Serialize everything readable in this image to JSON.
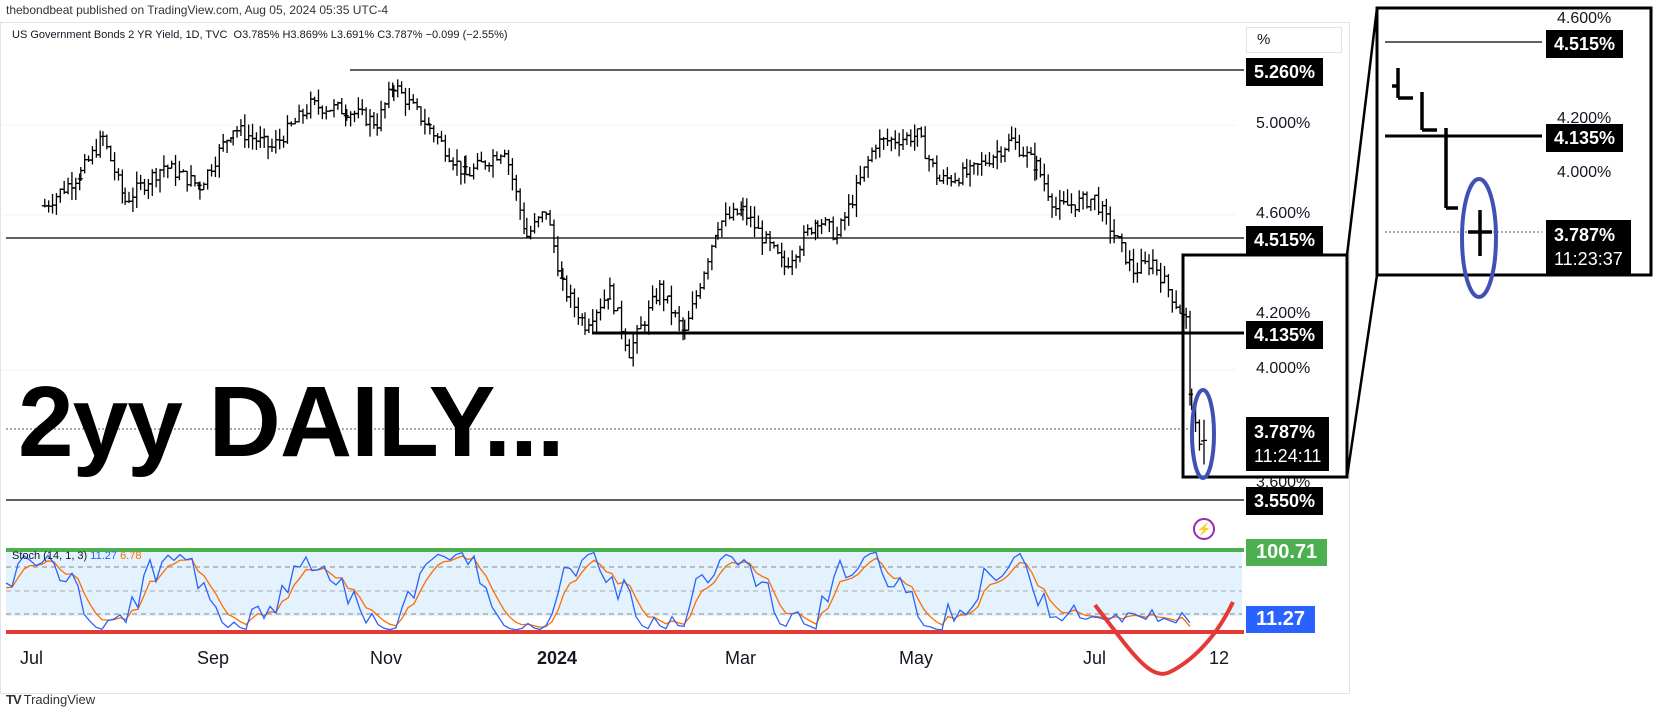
{
  "publisher": "thebondbeat published on TradingView.com, Aug 05, 2024 05:35 UTC-4",
  "symbol": {
    "name": "US Government Bonds 2 YR Yield, 1D, TVC",
    "ohlc": "O3.785% H3.869% L3.691% C3.787% −0.099 (−2.55%)"
  },
  "unit": "%",
  "annotation": "2yy DAILY...",
  "price_axis_ticks": [
    "5.000%",
    "4.600%",
    "4.200%",
    "4.000%",
    "3.600%"
  ],
  "level_tags": [
    "5.260%",
    "4.515%",
    "4.135%",
    "3.550%"
  ],
  "last_price": {
    "price": "3.787%",
    "countdown": "11:24:11"
  },
  "inset": {
    "ticks": [
      "4.600%",
      "4.200%",
      "4.000%"
    ],
    "tags": [
      "4.515%",
      "4.135%"
    ],
    "last_price": {
      "price": "3.787%",
      "countdown": "11:23:37"
    }
  },
  "stoch": {
    "label": "Stoch (14, 1, 3)",
    "k_value": "11.27",
    "d_value": "6.78",
    "upper_tag": "100.71",
    "current_tag": "11.27"
  },
  "x_axis": [
    "Jul",
    "Sep",
    "Nov",
    "2024",
    "Mar",
    "May",
    "Jul",
    "12"
  ],
  "branding": "TradingView",
  "colors": {
    "candle": "#000000",
    "stoch_k": "#2962ff",
    "stoch_d": "#ff6d00",
    "upper_line": "#4caf50",
    "lower_line": "#e53935",
    "highlight_ellipse": "#3f51b5",
    "stoch_band": "#e3f2fd"
  },
  "chart_data": {
    "type": "candlestick",
    "title": "US Government Bonds 2 YR Yield, 1D, TVC",
    "unit": "%",
    "x_start": "2023-06",
    "x_end": "2024-08",
    "y_range": [
      3.55,
      5.26
    ],
    "horizontal_levels": [
      5.26,
      4.515,
      4.135,
      3.55
    ],
    "last_close": 3.787,
    "last_ohlc": {
      "open": 3.785,
      "high": 3.869,
      "low": 3.691,
      "close": 3.787,
      "change": -0.099,
      "change_pct": -2.55
    },
    "anchor_closes": [
      {
        "date": "2023-06-15",
        "close": 4.72
      },
      {
        "date": "2023-06-28",
        "close": 4.85
      },
      {
        "date": "2023-07-06",
        "close": 4.99
      },
      {
        "date": "2023-07-14",
        "close": 4.74
      },
      {
        "date": "2023-07-28",
        "close": 4.88
      },
      {
        "date": "2023-08-10",
        "close": 4.8
      },
      {
        "date": "2023-08-22",
        "close": 5.03
      },
      {
        "date": "2023-09-05",
        "close": 4.95
      },
      {
        "date": "2023-09-19",
        "close": 5.12
      },
      {
        "date": "2023-10-02",
        "close": 5.1
      },
      {
        "date": "2023-10-13",
        "close": 5.05
      },
      {
        "date": "2023-10-19",
        "close": 5.2
      },
      {
        "date": "2023-11-01",
        "close": 5.03
      },
      {
        "date": "2023-11-14",
        "close": 4.84
      },
      {
        "date": "2023-11-28",
        "close": 4.95
      },
      {
        "date": "2023-12-06",
        "close": 4.6
      },
      {
        "date": "2023-12-13",
        "close": 4.7
      },
      {
        "date": "2023-12-19",
        "close": 4.4
      },
      {
        "date": "2023-12-27",
        "close": 4.25
      },
      {
        "date": "2024-01-05",
        "close": 4.38
      },
      {
        "date": "2024-01-12",
        "close": 4.14
      },
      {
        "date": "2024-01-23",
        "close": 4.39
      },
      {
        "date": "2024-02-01",
        "close": 4.21
      },
      {
        "date": "2024-02-13",
        "close": 4.65
      },
      {
        "date": "2024-02-22",
        "close": 4.7
      },
      {
        "date": "2024-03-08",
        "close": 4.48
      },
      {
        "date": "2024-03-20",
        "close": 4.67
      },
      {
        "date": "2024-03-27",
        "close": 4.6
      },
      {
        "date": "2024-04-10",
        "close": 4.97
      },
      {
        "date": "2024-04-25",
        "close": 5.0
      },
      {
        "date": "2024-05-03",
        "close": 4.82
      },
      {
        "date": "2024-05-14",
        "close": 4.85
      },
      {
        "date": "2024-05-29",
        "close": 4.98
      },
      {
        "date": "2024-06-07",
        "close": 4.88
      },
      {
        "date": "2024-06-14",
        "close": 4.71
      },
      {
        "date": "2024-06-28",
        "close": 4.75
      },
      {
        "date": "2024-07-12",
        "close": 4.46
      },
      {
        "date": "2024-07-19",
        "close": 4.5
      },
      {
        "date": "2024-07-31",
        "close": 4.26
      },
      {
        "date": "2024-08-02",
        "close": 3.88
      },
      {
        "date": "2024-08-05",
        "close": 3.787
      }
    ],
    "stochastic": {
      "params": "14, 1, 3",
      "k_last": 11.27,
      "d_last": 6.78,
      "band": [
        20,
        80
      ],
      "range": [
        0,
        100
      ]
    }
  }
}
